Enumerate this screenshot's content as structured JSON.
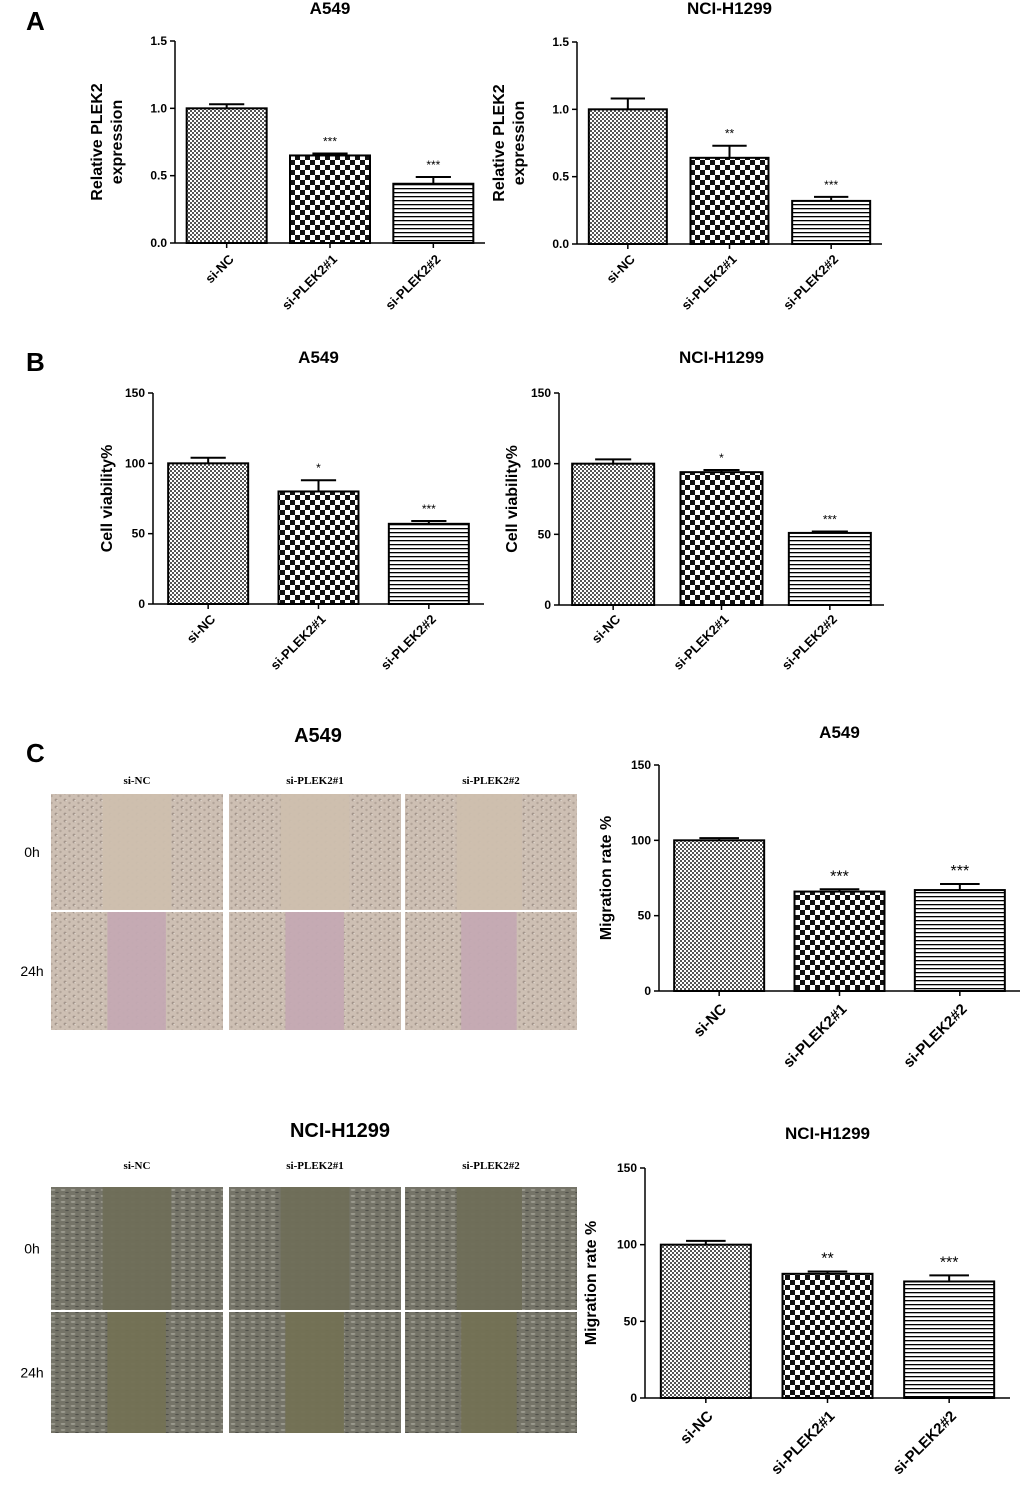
{
  "panels": {
    "A": "A",
    "B": "B",
    "C": "C"
  },
  "colors": {
    "background": "#ffffff",
    "ink": "#000000",
    "a549_bg": "#cdbfb3",
    "a549_gap": "#c3b4a3",
    "h1299_bg": "#757468",
    "h1299_gap": "#7f7d5a"
  },
  "chart_data": [
    {
      "id": "A-A549",
      "type": "bar",
      "title": "A549",
      "ylabel": [
        "Relative PLEK2",
        "expression"
      ],
      "categories": [
        "si-NC",
        "si-PLEK2#1",
        "si-PLEK2#2"
      ],
      "values": [
        1.0,
        0.65,
        0.44
      ],
      "errors": [
        0.03,
        0.015,
        0.05
      ],
      "significance": [
        "",
        "***",
        "***"
      ],
      "ylim": [
        0,
        1.5
      ],
      "yticks": [
        "0.0",
        "0.5",
        "1.0",
        "1.5"
      ],
      "ytick_values": [
        0,
        0.5,
        1.0,
        1.5
      ]
    },
    {
      "id": "A-H1299",
      "type": "bar",
      "title": "NCI-H1299",
      "ylabel": [
        "Relative PLEK2",
        "expression"
      ],
      "categories": [
        "si-NC",
        "si-PLEK2#1",
        "si-PLEK2#2"
      ],
      "values": [
        1.0,
        0.64,
        0.32
      ],
      "errors": [
        0.08,
        0.09,
        0.03
      ],
      "significance": [
        "",
        "**",
        "***"
      ],
      "ylim": [
        0,
        1.5
      ],
      "yticks": [
        "0.0",
        "0.5",
        "1.0",
        "1.5"
      ],
      "ytick_values": [
        0,
        0.5,
        1.0,
        1.5
      ]
    },
    {
      "id": "B-A549",
      "type": "bar",
      "title": "A549",
      "ylabel": [
        "Cell viability%"
      ],
      "categories": [
        "si-NC",
        "si-PLEK2#1",
        "si-PLEK2#2"
      ],
      "values": [
        100,
        80,
        57
      ],
      "errors": [
        4,
        8,
        2
      ],
      "significance": [
        "",
        "*",
        "***"
      ],
      "ylim": [
        0,
        150
      ],
      "yticks": [
        "0",
        "50",
        "100",
        "150"
      ],
      "ytick_values": [
        0,
        50,
        100,
        150
      ]
    },
    {
      "id": "B-H1299",
      "type": "bar",
      "title": "NCI-H1299",
      "ylabel": [
        "Cell viability%"
      ],
      "categories": [
        "si-NC",
        "si-PLEK2#1",
        "si-PLEK2#2"
      ],
      "values": [
        100,
        94,
        51
      ],
      "errors": [
        3,
        1.5,
        1
      ],
      "significance": [
        "",
        "*",
        "***"
      ],
      "ylim": [
        0,
        150
      ],
      "yticks": [
        "0",
        "50",
        "100",
        "150"
      ],
      "ytick_values": [
        0,
        50,
        100,
        150
      ]
    },
    {
      "id": "C-A549",
      "type": "bar",
      "title": "A549",
      "ylabel": [
        "Migration rate %"
      ],
      "categories": [
        "si-NC",
        "si-PLEK2#1",
        "si-PLEK2#2"
      ],
      "values": [
        100,
        66,
        67
      ],
      "errors": [
        1.5,
        1.5,
        4
      ],
      "significance": [
        "",
        "***",
        "***"
      ],
      "ylim": [
        0,
        150
      ],
      "yticks": [
        "0",
        "50",
        "100",
        "150"
      ],
      "ytick_values": [
        0,
        50,
        100,
        150
      ]
    },
    {
      "id": "C-H1299",
      "type": "bar",
      "title": "NCI-H1299",
      "ylabel": [
        "Migration rate %"
      ],
      "categories": [
        "si-NC",
        "si-PLEK2#1",
        "si-PLEK2#2"
      ],
      "values": [
        100,
        81,
        76
      ],
      "errors": [
        2.5,
        1.5,
        4
      ],
      "significance": [
        "",
        "**",
        "***"
      ],
      "ylim": [
        0,
        150
      ],
      "yticks": [
        "0",
        "50",
        "100",
        "150"
      ],
      "ytick_values": [
        0,
        50,
        100,
        150
      ]
    }
  ],
  "wound_assays": [
    {
      "id": "wound-A549",
      "title": "A549",
      "columns": [
        "si-NC",
        "si-PLEK2#1",
        "si-PLEK2#2"
      ],
      "rows": [
        "0h",
        "24h"
      ]
    },
    {
      "id": "wound-H1299",
      "title": "NCI-H1299",
      "columns": [
        "si-NC",
        "si-PLEK2#1",
        "si-PLEK2#2"
      ],
      "rows": [
        "0h",
        "24h"
      ]
    }
  ]
}
